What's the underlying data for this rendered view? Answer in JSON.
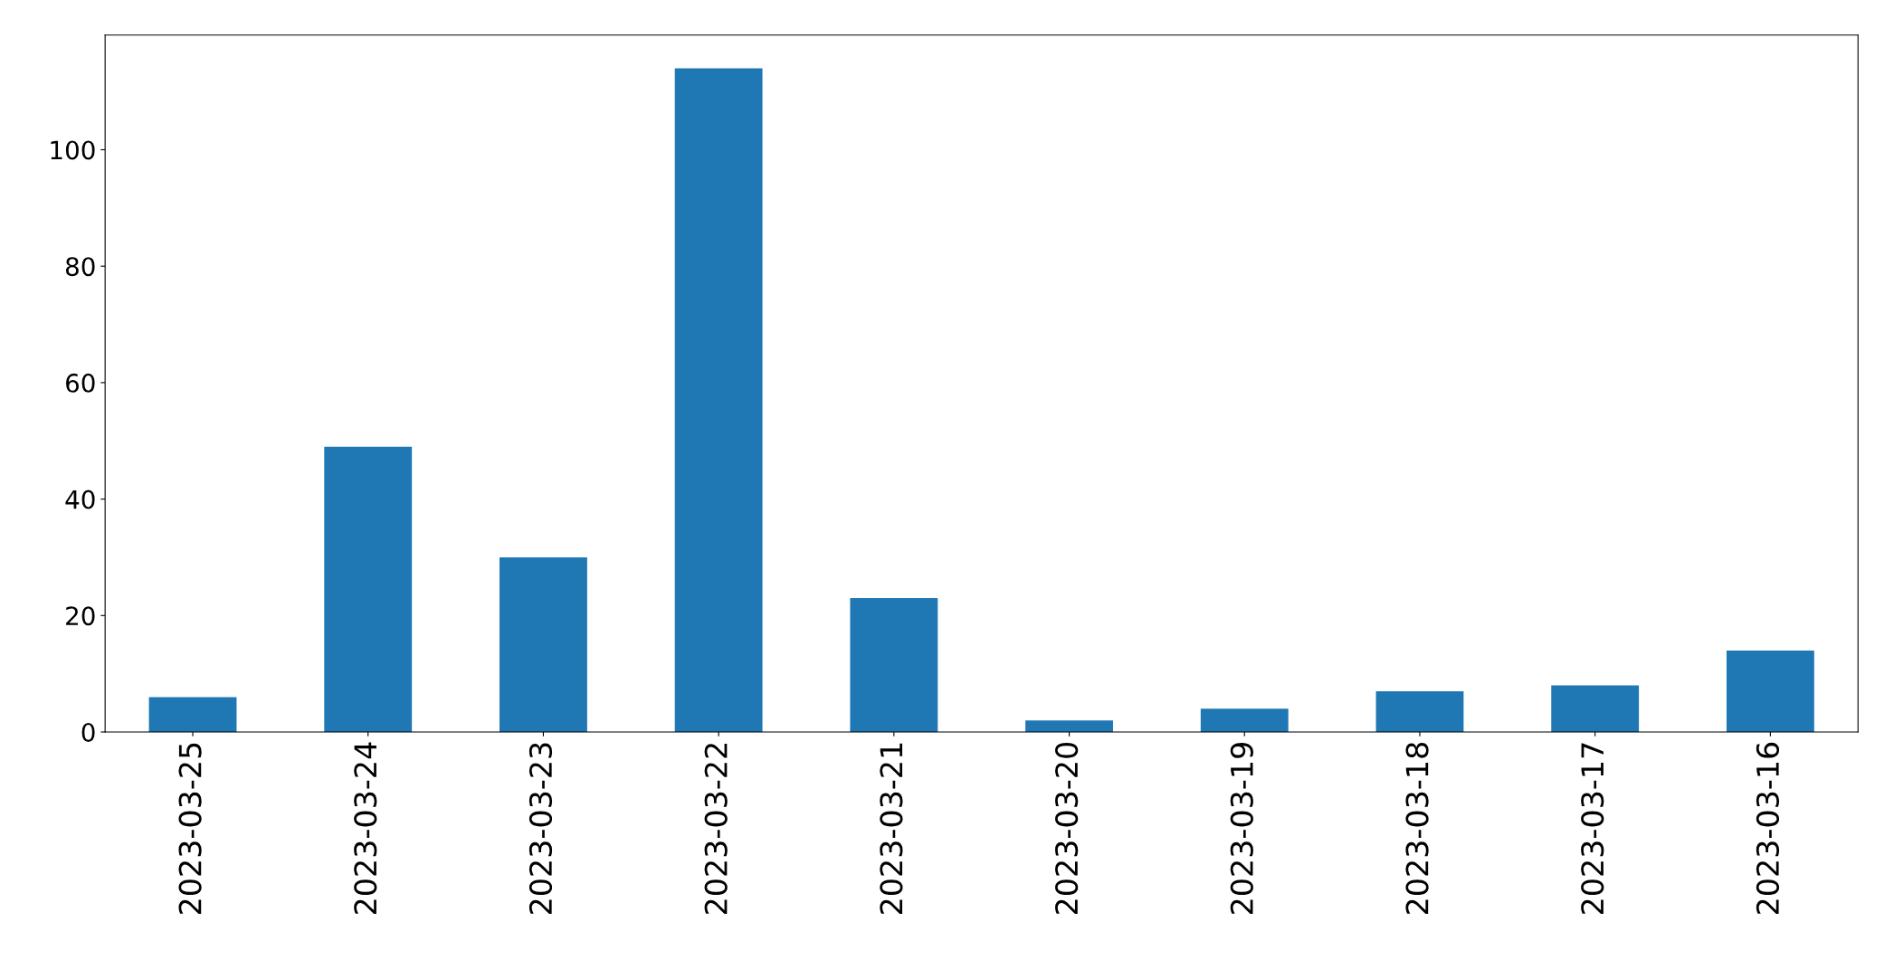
{
  "chart_data": {
    "type": "bar",
    "categories": [
      "2023-03-25",
      "2023-03-24",
      "2023-03-23",
      "2023-03-22",
      "2023-03-21",
      "2023-03-20",
      "2023-03-19",
      "2023-03-18",
      "2023-03-17",
      "2023-03-16"
    ],
    "values": [
      6,
      49,
      30,
      114,
      23,
      2,
      4,
      7,
      8,
      14
    ],
    "color": "#1f77b4",
    "ylim": [
      0,
      119.7
    ],
    "yticks": [
      0,
      20,
      40,
      60,
      80,
      100
    ],
    "grid": false
  }
}
